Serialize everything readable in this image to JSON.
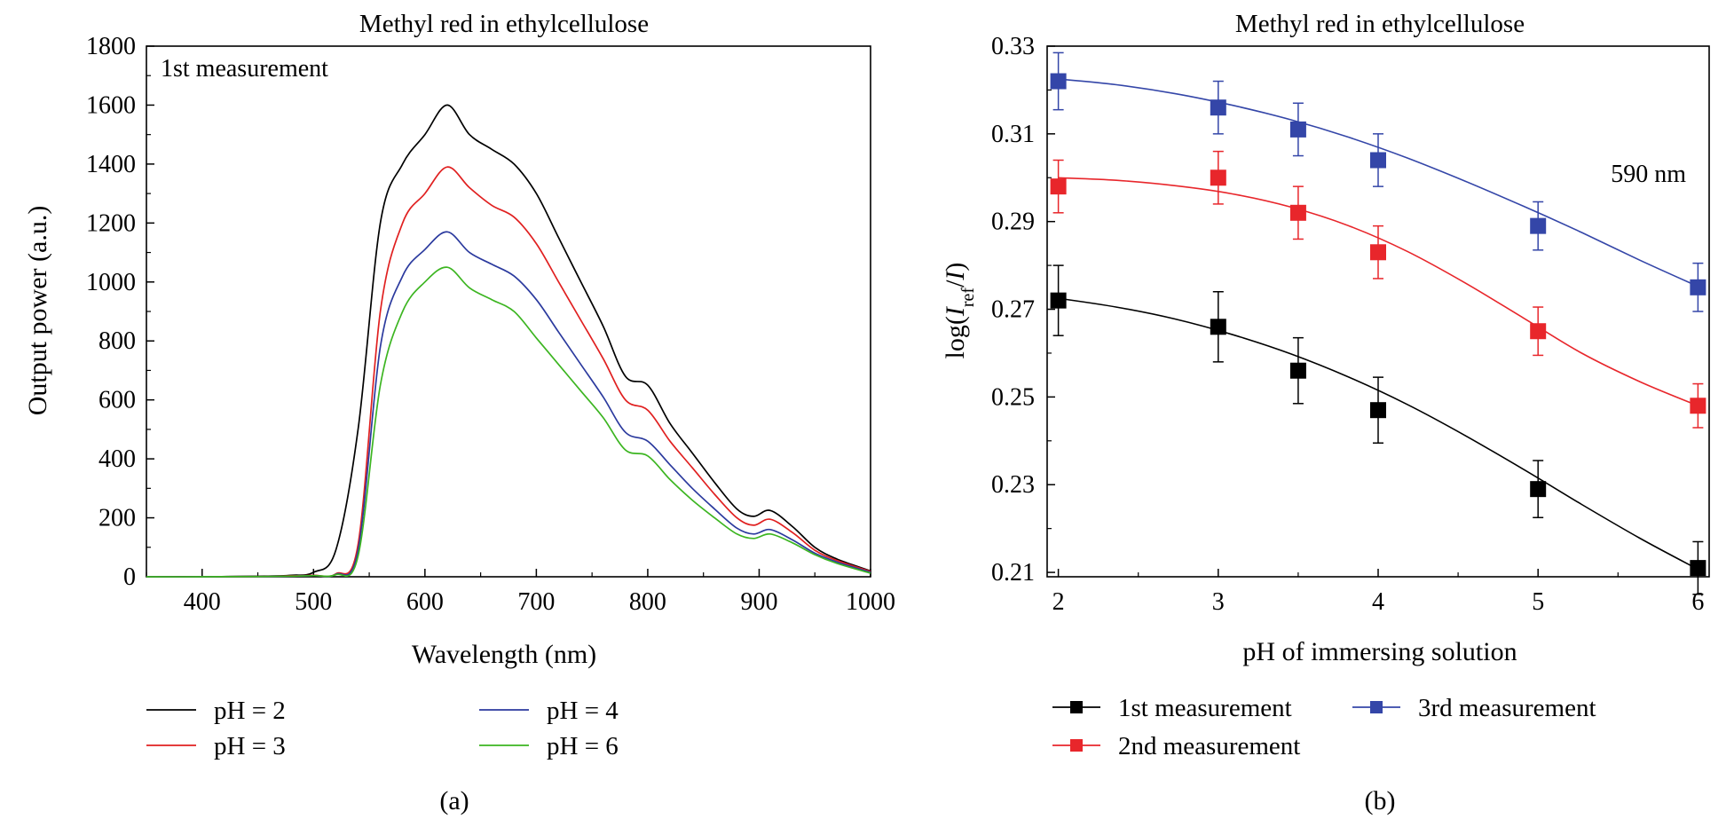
{
  "panel_a": {
    "title": "Methyl red in ethylcellulose",
    "annotation": "1st measurement",
    "xlabel": "Wavelength (nm)",
    "ylabel": "Output power (a.u.)",
    "panel_label": "(a)",
    "x_ticks": [
      "400",
      "500",
      "600",
      "700",
      "800",
      "900",
      "1000"
    ],
    "y_ticks": [
      "0",
      "200",
      "400",
      "600",
      "800",
      "1000",
      "1200",
      "1400",
      "1600",
      "1800"
    ]
  },
  "panel_b": {
    "title": "Methyl red in ethylcellulose",
    "annotation": "590 nm",
    "xlabel": "pH of immersing solution",
    "ylabel": "log(I_ref/I)",
    "panel_label": "(b)",
    "x_ticks": [
      "2",
      "3",
      "4",
      "5",
      "6"
    ],
    "y_ticks": [
      "0.21",
      "0.23",
      "0.25",
      "0.27",
      "0.29",
      "0.31",
      "0.33"
    ]
  },
  "chart_data": [
    {
      "type": "line",
      "title": "Methyl red in ethylcellulose",
      "xlabel": "Wavelength (nm)",
      "ylabel": "Output power (a.u.)",
      "xlim": [
        350,
        1000
      ],
      "ylim": [
        0,
        1800
      ],
      "legend_position": "bottom",
      "x": [
        350,
        400,
        450,
        480,
        500,
        520,
        540,
        560,
        580,
        600,
        620,
        640,
        660,
        680,
        700,
        720,
        740,
        760,
        780,
        800,
        820,
        840,
        860,
        880,
        895,
        910,
        930,
        950,
        970,
        1000
      ],
      "series": [
        {
          "name": "pH = 2",
          "color": "#000000",
          "values": [
            0,
            0,
            2,
            5,
            15,
            90,
            500,
            1200,
            1400,
            1500,
            1600,
            1500,
            1450,
            1400,
            1300,
            1150,
            1000,
            850,
            680,
            650,
            520,
            420,
            320,
            230,
            205,
            225,
            170,
            100,
            60,
            20
          ]
        },
        {
          "name": "pH = 3",
          "color": "#e02020",
          "values": [
            0,
            0,
            1,
            3,
            5,
            10,
            110,
            900,
            1200,
            1300,
            1390,
            1320,
            1260,
            1220,
            1130,
            1000,
            870,
            740,
            600,
            565,
            460,
            370,
            280,
            200,
            175,
            195,
            150,
            90,
            55,
            18
          ]
        },
        {
          "name": "pH = 4",
          "color": "#2b3a9e",
          "values": [
            0,
            0,
            1,
            2,
            4,
            8,
            90,
            780,
            1020,
            1110,
            1170,
            1100,
            1060,
            1020,
            940,
            830,
            720,
            610,
            490,
            460,
            380,
            300,
            230,
            165,
            145,
            160,
            125,
            80,
            50,
            15
          ]
        },
        {
          "name": "pH = 6",
          "color": "#3cb521",
          "values": [
            0,
            0,
            1,
            2,
            4,
            7,
            70,
            650,
            900,
            1000,
            1050,
            980,
            940,
            900,
            810,
            720,
            630,
            540,
            430,
            410,
            330,
            260,
            200,
            145,
            130,
            145,
            115,
            75,
            45,
            12
          ]
        }
      ]
    },
    {
      "type": "scatter",
      "title": "Methyl red in ethylcellulose",
      "xlabel": "pH of immersing solution",
      "ylabel": "log(I_ref/I)",
      "xlim": [
        1.93,
        6.07
      ],
      "ylim": [
        0.209,
        0.33
      ],
      "legend_position": "bottom",
      "x": [
        2,
        3,
        3.5,
        4,
        5,
        6
      ],
      "series": [
        {
          "name": "1st measurement",
          "color": "#000000",
          "values": [
            0.272,
            0.266,
            0.256,
            0.247,
            0.229,
            0.211
          ],
          "errors": [
            0.008,
            0.008,
            0.0075,
            0.0075,
            0.0065,
            0.006
          ],
          "fit": [
            0.2725,
            0.2705,
            0.2678,
            0.2642,
            0.2598,
            0.2545,
            0.2483,
            0.2412,
            0.2335,
            0.2255,
            0.2178,
            0.2107
          ]
        },
        {
          "name": "2nd measurement",
          "color": "#e8262b",
          "values": [
            0.298,
            0.3,
            0.292,
            0.283,
            0.265,
            0.248
          ],
          "errors": [
            0.006,
            0.006,
            0.006,
            0.006,
            0.0055,
            0.005
          ],
          "fit": [
            0.3,
            0.2994,
            0.2982,
            0.2963,
            0.2933,
            0.289,
            0.2832,
            0.276,
            0.268,
            0.26,
            0.2535,
            0.248
          ]
        },
        {
          "name": "3rd measurement",
          "color": "#3446a8",
          "values": [
            0.322,
            0.316,
            0.311,
            0.304,
            0.289,
            0.275
          ],
          "errors": [
            0.0065,
            0.006,
            0.006,
            0.006,
            0.0055,
            0.0055
          ],
          "fit": [
            0.3225,
            0.3212,
            0.3192,
            0.3165,
            0.3132,
            0.3092,
            0.3045,
            0.2992,
            0.2935,
            0.2875,
            0.2812,
            0.2752
          ]
        }
      ],
      "fit_x": [
        2,
        2.364,
        2.727,
        3.091,
        3.455,
        3.818,
        4.182,
        4.545,
        4.909,
        5.273,
        5.636,
        6
      ]
    }
  ]
}
